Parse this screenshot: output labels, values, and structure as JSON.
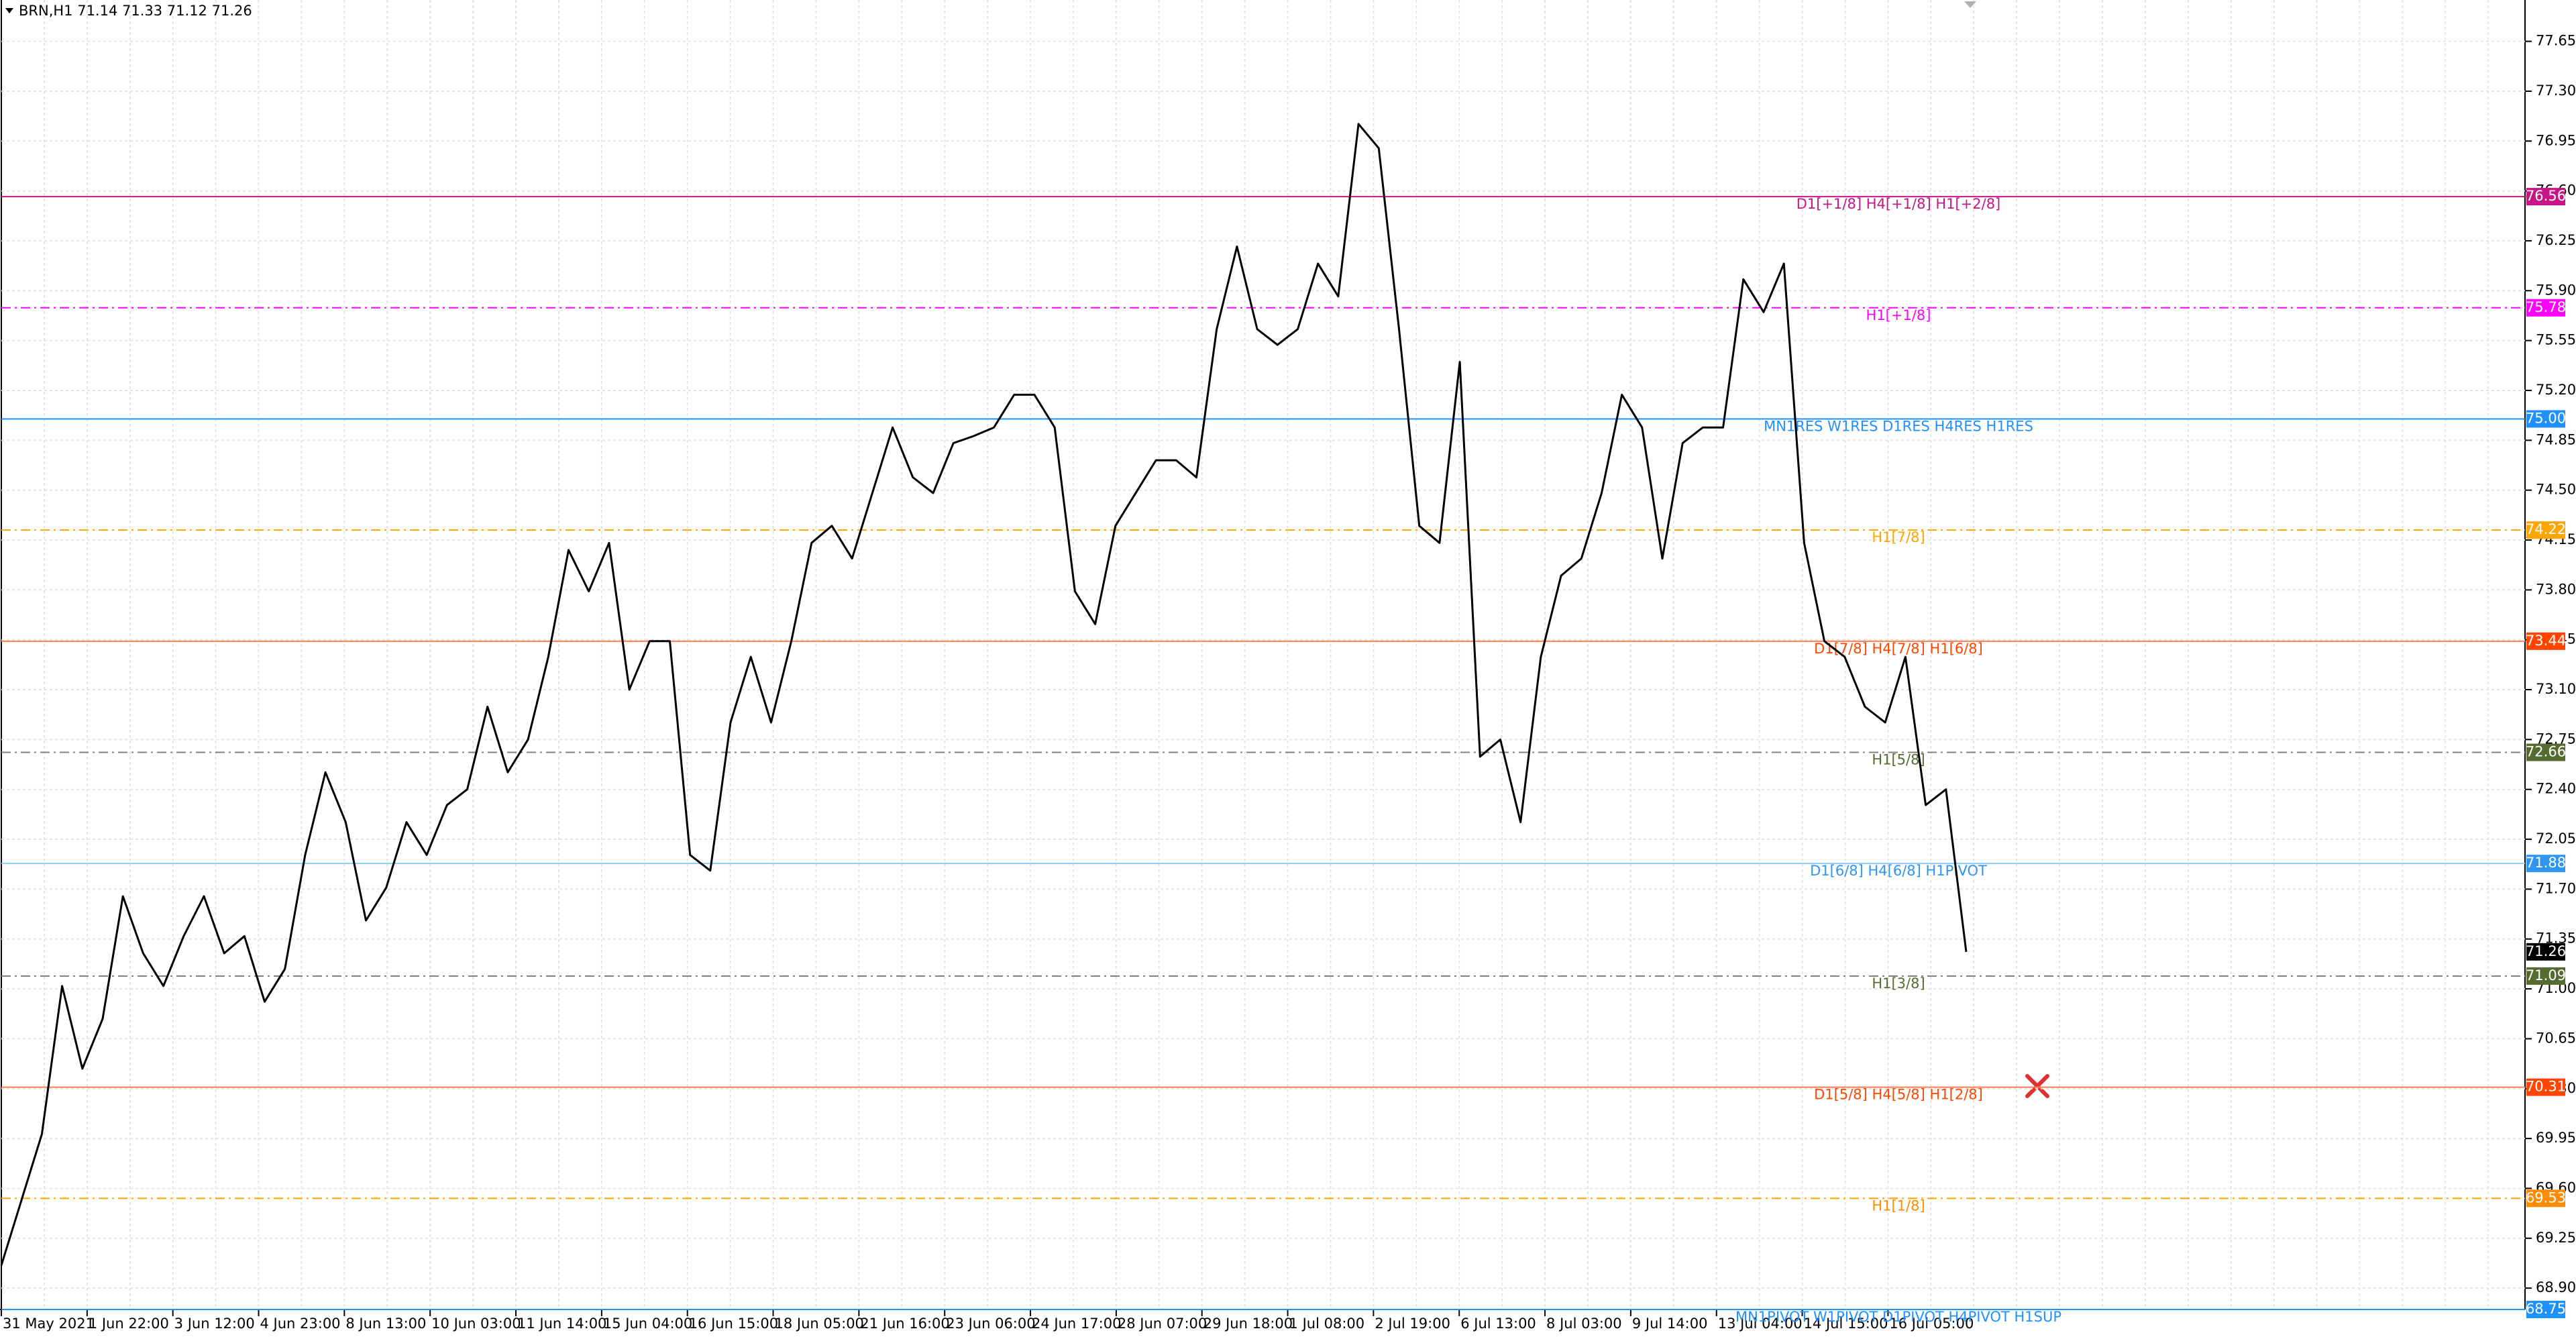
{
  "chart_data": {
    "type": "line",
    "header": "BRN,H1  71.14 71.33 71.12 71.26",
    "ylim": [
      68.75,
      77.94
    ],
    "yticks": [
      {
        "value": 68.9,
        "label": "68.90"
      },
      {
        "value": 69.25,
        "label": "69.25"
      },
      {
        "value": 69.6,
        "label": "69.60"
      },
      {
        "value": 69.95,
        "label": "69.95"
      },
      {
        "value": 70.3,
        "label": "70.30"
      },
      {
        "value": 70.65,
        "label": "70.65"
      },
      {
        "value": 71,
        "label": "71.00"
      },
      {
        "value": 71.35,
        "label": "71.35"
      },
      {
        "value": 71.7,
        "label": "71.70"
      },
      {
        "value": 72.05,
        "label": "72.05"
      },
      {
        "value": 72.4,
        "label": "72.40"
      },
      {
        "value": 72.75,
        "label": "72.75"
      },
      {
        "value": 73.1,
        "label": "73.10"
      },
      {
        "value": 73.45,
        "label": "73.45"
      },
      {
        "value": 73.8,
        "label": "73.80"
      },
      {
        "value": 74.15,
        "label": "74.15"
      },
      {
        "value": 74.5,
        "label": "74.50"
      },
      {
        "value": 74.85,
        "label": "74.85"
      },
      {
        "value": 75.2,
        "label": "75.20"
      },
      {
        "value": 75.55,
        "label": "75.55"
      },
      {
        "value": 75.9,
        "label": "75.90"
      },
      {
        "value": 76.25,
        "label": "76.25"
      },
      {
        "value": 76.6,
        "label": "76.60"
      },
      {
        "value": 76.95,
        "label": "76.95"
      },
      {
        "value": 77.3,
        "label": "77.30"
      },
      {
        "value": 77.65,
        "label": "77.65"
      }
    ],
    "grid": true,
    "x_labels": [
      "31 May 2021",
      "1 Jun 22:00",
      "3 Jun 12:00",
      "4 Jun 23:00",
      "8 Jun 13:00",
      "10 Jun 03:00",
      "11 Jun 14:00",
      "15 Jun 04:00",
      "16 Jun 15:00",
      "18 Jun 05:00",
      "21 Jun 16:00",
      "23 Jun 06:00",
      "24 Jun 17:00",
      "28 Jun 07:00",
      "29 Jun 18:00",
      "1 Jul 08:00",
      "2 Jul 19:00",
      "6 Jul 13:00",
      "8 Jul 03:00",
      "9 Jul 14:00",
      "13 Jul 04:00",
      "14 Jul 15:00",
      "16 Jul 05:00"
    ],
    "series": [
      {
        "color": "#000000",
        "values": [
          69.06,
          69.52,
          69.98,
          71.02,
          70.44,
          70.79,
          71.65,
          71.25,
          71.02,
          71.37,
          71.65,
          71.25,
          71.37,
          70.91,
          71.14,
          71.94,
          72.52,
          72.17,
          71.48,
          71.71,
          72.17,
          71.94,
          72.29,
          72.4,
          72.98,
          72.52,
          72.75,
          73.33,
          74.08,
          73.79,
          74.13,
          73.1,
          73.44,
          73.44,
          71.94,
          71.83,
          72.87,
          73.33,
          72.87,
          73.44,
          74.13,
          74.25,
          74.02,
          74.48,
          74.94,
          74.59,
          74.48,
          74.83,
          74.88,
          74.94,
          75.17,
          75.17,
          74.94,
          73.79,
          73.56,
          74.25,
          74.48,
          74.71,
          74.71,
          74.59,
          75.63,
          76.21,
          75.63,
          75.52,
          75.63,
          76.09,
          75.86,
          77.07,
          76.9,
          75.63,
          74.25,
          74.13,
          75.4,
          72.63,
          72.75,
          72.17,
          73.33,
          73.9,
          74.02,
          74.48,
          75.17,
          74.94,
          74.02,
          74.83,
          74.94,
          74.94,
          75.98,
          75.75,
          76.09,
          74.13,
          73.44,
          73.33,
          72.98,
          72.87,
          73.33,
          72.29,
          72.4,
          71.26
        ]
      }
    ],
    "levels": {
      "values": [
        76.56,
        75.78,
        75,
        74.22,
        73.44,
        72.66,
        71.88,
        71.09,
        70.31,
        69.53,
        68.75
      ],
      "value_labels": [
        "76.56",
        "75.78",
        "75.00",
        "74.22",
        "73.44",
        "72.66",
        "71.88",
        "71.09",
        "70.31",
        "69.53",
        "68.75"
      ],
      "texts": [
        "D1[+1/8] H4[+1/8] H1[+2/8]",
        "H1[+1/8]",
        "MN1RES W1RES D1RES H4RES H1RES",
        "H1[7/8]",
        "D1[7/8] H4[7/8] H1[6/8]",
        "H1[5/8]",
        "D1[6/8] H4[6/8] H1PIVOT",
        "H1[3/8]",
        "D1[5/8] H4[5/8] H1[2/8]",
        "H1[1/8]",
        "MN1PIVOT W1PIVOT D1PIVOT H4PIVOT H1SUP"
      ],
      "colors": [
        "#c71585",
        "#ff00ff",
        "#1e90ff",
        "#ffa500",
        "#ff4500",
        "#556b2f",
        "#2f95ef",
        "#556b2f",
        "#ff4500",
        "#ff8c00",
        "#1e90ff"
      ],
      "line_colors": [
        "#c71585",
        "#ff00ff",
        "#1e90ff",
        "#ffa500",
        "#ff7f50",
        "#808080",
        "#87cefa",
        "#808080",
        "#ff7f50",
        "#ffa500",
        "#1e90ff"
      ],
      "styles": [
        "solid",
        "dashdot",
        "solid",
        "dashdot",
        "solid",
        "dashdot",
        "solid",
        "dashdot",
        "solid",
        "dashdot",
        "solid"
      ]
    },
    "last": {
      "value": 71.26
    }
  }
}
